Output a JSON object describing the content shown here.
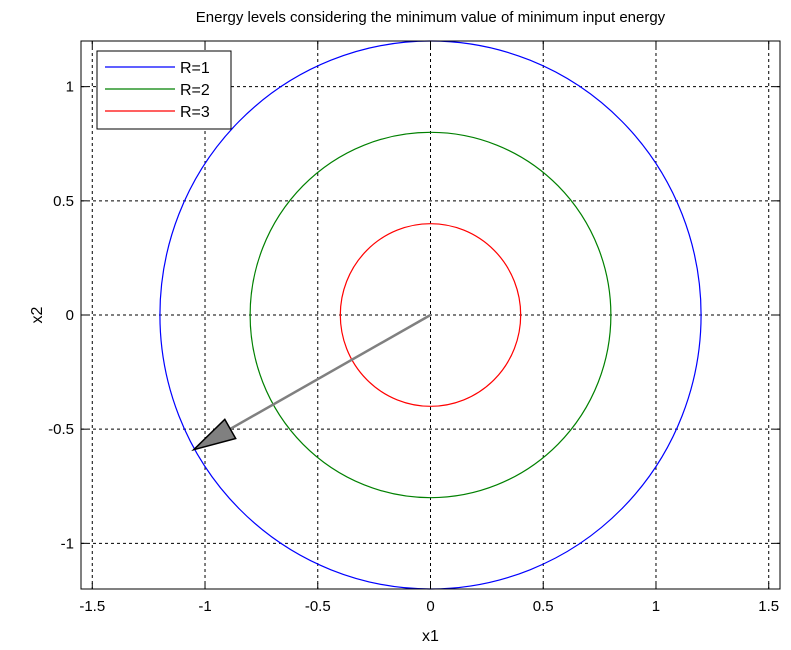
{
  "chart_data": {
    "type": "line",
    "title": "Energy levels considering the minimum value of minimum input energy",
    "xlabel": "x1",
    "ylabel": "x2",
    "xlim": [
      -1.55,
      1.55
    ],
    "ylim": [
      -1.2,
      1.2
    ],
    "x_ticks": [
      -1.5,
      -1,
      -0.5,
      0,
      0.5,
      1,
      1.5
    ],
    "x_tick_labels": [
      "-1.5",
      "-1",
      "-0.5",
      "0",
      "0.5",
      "1",
      "1.5"
    ],
    "y_ticks": [
      -1,
      -0.5,
      0,
      0.5,
      1
    ],
    "y_tick_labels": [
      "-1",
      "-0.5",
      "0",
      "0.5",
      "1"
    ],
    "grid": true,
    "grid_style": "dashed",
    "legend_position": "top-left",
    "series": [
      {
        "name": "R=1",
        "shape": "circle",
        "center": [
          0,
          0
        ],
        "radius": 1.2,
        "color": "#0000ff"
      },
      {
        "name": "R=2",
        "shape": "circle",
        "center": [
          0,
          0
        ],
        "radius": 0.8,
        "color": "#008000"
      },
      {
        "name": "R=3",
        "shape": "circle",
        "center": [
          0,
          0
        ],
        "radius": 0.4,
        "color": "#ff0000"
      }
    ],
    "annotations": [
      {
        "type": "arrow",
        "from": [
          0,
          0
        ],
        "to": [
          -1.05,
          -0.59
        ],
        "color": "#808080",
        "head_color": "#808080"
      }
    ]
  }
}
